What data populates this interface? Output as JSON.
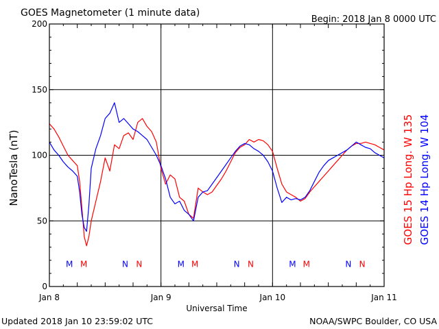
{
  "header": {
    "title": "GOES Magnetometer (1 minute data)",
    "begin": "Begin:  2018 Jan 8 0000 UTC"
  },
  "footer": {
    "updated": "Updated 2018 Jan 10 23:59:02 UTC",
    "credit": "NOAA/SWPC Boulder, CO USA"
  },
  "chart_data": {
    "type": "line",
    "title": "GOES Magnetometer (1 minute data)",
    "xlabel": "Universal Time",
    "ylabel": "NanoTesla (nT)",
    "xlim": [
      0,
      72
    ],
    "ylim": [
      0,
      200
    ],
    "x_unit": "hours since 2018 Jan 8 0000 UTC",
    "yticks": [
      0,
      50,
      100,
      150,
      200
    ],
    "xticks": [
      {
        "x": 0,
        "label": "Jan 8"
      },
      {
        "x": 24,
        "label": "Jan 9"
      },
      {
        "x": 48,
        "label": "Jan 10"
      },
      {
        "x": 72,
        "label": "Jan 11"
      }
    ],
    "grid": true,
    "legend_position": "right, vertical",
    "series": [
      {
        "name": "GOES 15 Hp",
        "legend": "GOES 15 Hp  Long. W 135",
        "color": "#ff0000",
        "x": [
          0,
          1,
          2,
          3,
          4,
          5,
          5.5,
          6,
          6.5,
          7,
          7.5,
          8,
          8.5,
          9,
          10,
          11,
          12,
          13,
          14,
          15,
          16,
          17,
          18,
          19,
          20,
          21,
          22,
          23,
          24,
          25,
          26,
          27,
          28,
          29,
          30,
          31,
          32,
          33,
          34,
          35,
          36,
          37,
          38,
          39,
          40,
          41,
          42,
          43,
          44,
          45,
          46,
          47,
          48,
          49,
          50,
          51,
          52,
          53,
          54,
          55,
          56,
          57,
          58,
          59,
          60,
          61,
          62,
          63,
          64,
          65,
          66,
          67,
          68,
          69,
          70,
          71,
          72
        ],
        "values": [
          124,
          120,
          114,
          107,
          100,
          96,
          94,
          92,
          80,
          60,
          38,
          31,
          38,
          50,
          65,
          80,
          98,
          88,
          108,
          105,
          115,
          117,
          112,
          125,
          128,
          122,
          118,
          110,
          90,
          78,
          85,
          82,
          68,
          65,
          55,
          52,
          75,
          72,
          70,
          72,
          77,
          82,
          88,
          95,
          102,
          106,
          108,
          112,
          110,
          112,
          111,
          108,
          103,
          90,
          78,
          72,
          70,
          68,
          65,
          67,
          72,
          76,
          80,
          84,
          88,
          92,
          96,
          100,
          104,
          107,
          109,
          109,
          110,
          109,
          108,
          106,
          104
        ]
      },
      {
        "name": "GOES 14 Hp",
        "legend": "GOES 14 Hp  Long. W 104",
        "color": "#0000ff",
        "x": [
          0,
          1,
          2,
          3,
          4,
          5,
          5.5,
          6,
          6.5,
          7,
          7.5,
          8,
          8.5,
          9,
          10,
          11,
          12,
          13,
          14,
          15,
          16,
          17,
          18,
          19,
          20,
          21,
          22,
          23,
          24,
          25,
          26,
          27,
          28,
          29,
          30,
          31,
          32,
          33,
          34,
          35,
          36,
          37,
          38,
          39,
          40,
          41,
          42,
          43,
          44,
          45,
          46,
          47,
          48,
          49,
          50,
          51,
          52,
          53,
          54,
          55,
          56,
          57,
          58,
          59,
          60,
          61,
          62,
          63,
          64,
          65,
          66,
          67,
          68,
          69,
          70,
          71,
          72
        ],
        "values": [
          110,
          104,
          100,
          95,
          91,
          88,
          86,
          84,
          72,
          55,
          45,
          42,
          62,
          90,
          105,
          115,
          128,
          132,
          140,
          125,
          128,
          124,
          120,
          118,
          115,
          112,
          106,
          100,
          92,
          82,
          68,
          63,
          65,
          58,
          55,
          50,
          68,
          72,
          73,
          78,
          83,
          88,
          93,
          98,
          103,
          107,
          109,
          108,
          105,
          103,
          100,
          95,
          88,
          75,
          64,
          68,
          66,
          67,
          66,
          68,
          73,
          80,
          87,
          92,
          96,
          98,
          100,
          102,
          104,
          107,
          110,
          108,
          106,
          105,
          102,
          100,
          98
        ]
      }
    ],
    "markers": [
      {
        "x": 4.3,
        "label": "M",
        "color": "#0000ff"
      },
      {
        "x": 7.4,
        "label": "M",
        "color": "#ff0000"
      },
      {
        "x": 16.3,
        "label": "N",
        "color": "#0000ff"
      },
      {
        "x": 19.3,
        "label": "N",
        "color": "#ff0000"
      },
      {
        "x": 28.3,
        "label": "M",
        "color": "#0000ff"
      },
      {
        "x": 31.3,
        "label": "M",
        "color": "#ff0000"
      },
      {
        "x": 40.3,
        "label": "N",
        "color": "#0000ff"
      },
      {
        "x": 43.3,
        "label": "N",
        "color": "#ff0000"
      },
      {
        "x": 52.3,
        "label": "M",
        "color": "#0000ff"
      },
      {
        "x": 55.3,
        "label": "M",
        "color": "#ff0000"
      },
      {
        "x": 64.3,
        "label": "N",
        "color": "#0000ff"
      },
      {
        "x": 67.3,
        "label": "N",
        "color": "#ff0000"
      }
    ],
    "marker_y": 17
  }
}
